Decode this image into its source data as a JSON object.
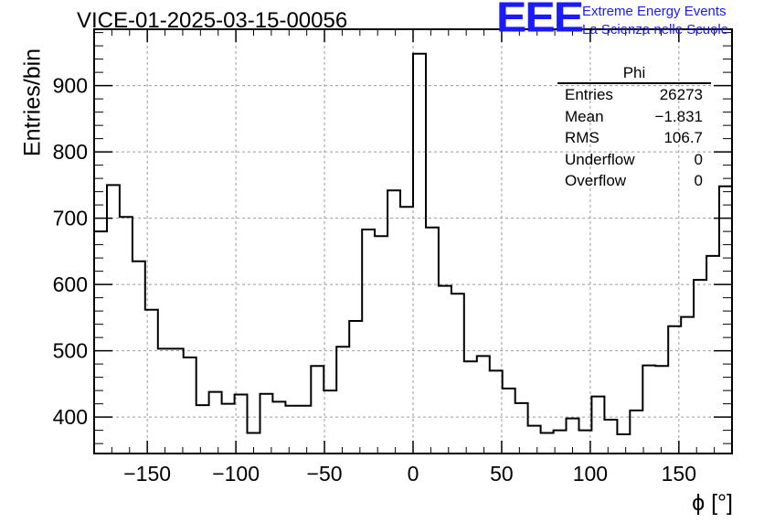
{
  "header": {
    "title": "VICE-01-2025-03-15-00056",
    "logo_text": "EEE",
    "logo_line1": "Extreme Energy Events",
    "logo_line2": "La Scienza nelle Scuole",
    "logo_color": "#1a1aff"
  },
  "stats": {
    "title": "Phi",
    "rows": [
      {
        "label": "Entries",
        "value": "26273"
      },
      {
        "label": "Mean",
        "value": "−1.831"
      },
      {
        "label": "RMS",
        "value": "106.7"
      },
      {
        "label": "Underflow",
        "value": "0"
      },
      {
        "label": "Overflow",
        "value": "0"
      }
    ]
  },
  "chart_data": {
    "type": "histogram",
    "xlabel": "ϕ [°]",
    "ylabel": "Entries/bin",
    "xlim": [
      -180,
      180
    ],
    "ylim": [
      345,
      985
    ],
    "grid": true,
    "x_ticks": [
      -150,
      -100,
      -50,
      0,
      50,
      100,
      150
    ],
    "y_ticks": [
      400,
      500,
      600,
      700,
      800,
      900
    ],
    "x_tick_labels": [
      "−150",
      "−100",
      "−50",
      "0",
      "50",
      "100",
      "150"
    ],
    "y_tick_labels": [
      "400",
      "500",
      "600",
      "700",
      "800",
      "900"
    ],
    "bin_edges_start": -180,
    "bin_width": 7.2,
    "values": [
      680,
      750,
      702,
      635,
      562,
      503,
      503,
      490,
      418,
      438,
      420,
      434,
      376,
      435,
      423,
      417,
      417,
      477,
      440,
      506,
      545,
      683,
      673,
      742,
      717,
      948,
      686,
      598,
      586,
      484,
      492,
      470,
      443,
      421,
      387,
      376,
      380,
      398,
      380,
      431,
      396,
      374,
      410,
      478,
      477,
      537,
      551,
      607,
      643,
      748
    ],
    "line_color": "#000000"
  }
}
